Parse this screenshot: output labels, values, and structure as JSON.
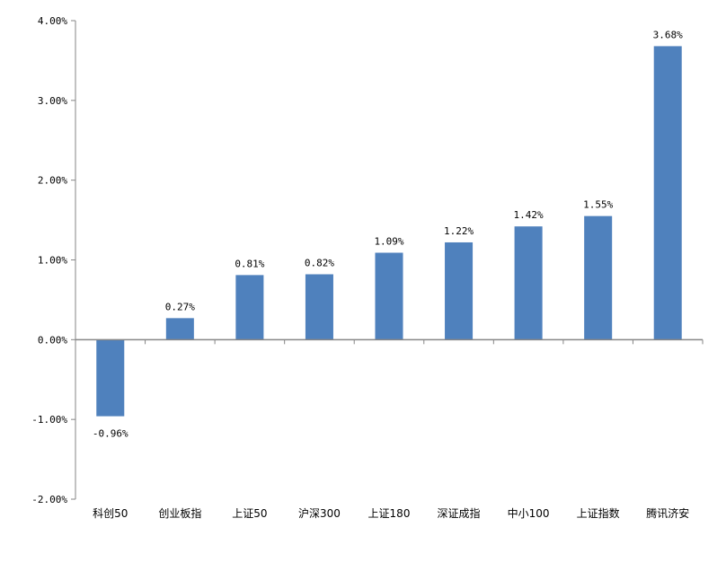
{
  "chart_data": {
    "type": "bar",
    "categories": [
      "科创50",
      "创业板指",
      "上证50",
      "沪深300",
      "上证180",
      "深证成指",
      "中小100",
      "上证指数",
      "腾讯济安"
    ],
    "values": [
      -0.96,
      0.27,
      0.81,
      0.82,
      1.09,
      1.22,
      1.42,
      1.55,
      3.68
    ],
    "data_labels": [
      "-0.96%",
      "0.27%",
      "0.81%",
      "0.82%",
      "1.09%",
      "1.22%",
      "1.42%",
      "1.55%",
      "3.68%"
    ],
    "y_ticks": [
      4,
      3,
      2,
      1,
      0,
      -1,
      -2
    ],
    "y_tick_labels": [
      "4.00%",
      "3.00%",
      "2.00%",
      "1.00%",
      "0.00%",
      "-1.00%",
      "-2.00%"
    ],
    "ylim": [
      -2,
      4
    ],
    "title": "",
    "xlabel": "",
    "ylabel": "",
    "grid": false,
    "legend": "none",
    "bar_color": "#4f81bd",
    "axis_color": "#868686"
  }
}
